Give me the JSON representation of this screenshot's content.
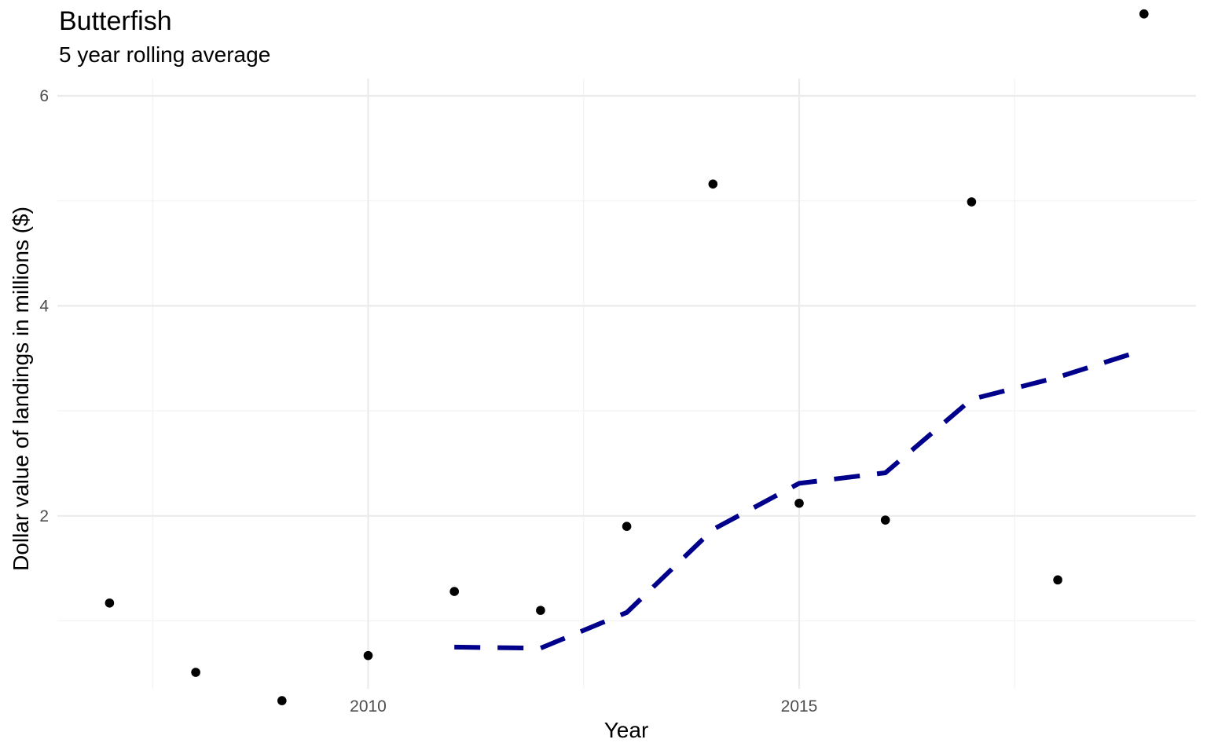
{
  "chart_data": {
    "type": "scatter",
    "title": "Butterfish",
    "subtitle": "5 year rolling average",
    "xlabel": "Year",
    "ylabel": "Dollar value of landings in millions ($)",
    "xlim": [
      2006.2,
      2019.7
    ],
    "ylim": [
      0.25,
      6.3
    ],
    "x_ticks": [
      2010,
      2015
    ],
    "y_ticks": [
      2,
      4,
      6
    ],
    "grid": true,
    "legend": "none",
    "series": [
      {
        "type": "scatter",
        "color": "#000000",
        "x": [
          2007,
          2008,
          2009,
          2010,
          2011,
          2012,
          2013,
          2014,
          2015,
          2016,
          2017,
          2018,
          2019
        ],
        "y": [
          1.17,
          0.51,
          0.24,
          0.67,
          1.28,
          1.1,
          1.9,
          5.16,
          2.12,
          1.96,
          4.99,
          1.39,
          6.78
        ]
      },
      {
        "type": "line",
        "style": "dashed",
        "color": "#00008B",
        "x": [
          2011,
          2012,
          2013,
          2014,
          2015,
          2016,
          2017,
          2018,
          2019
        ],
        "y": [
          0.75,
          0.74,
          1.08,
          1.87,
          2.31,
          2.41,
          3.11,
          3.32,
          3.58
        ]
      }
    ]
  }
}
